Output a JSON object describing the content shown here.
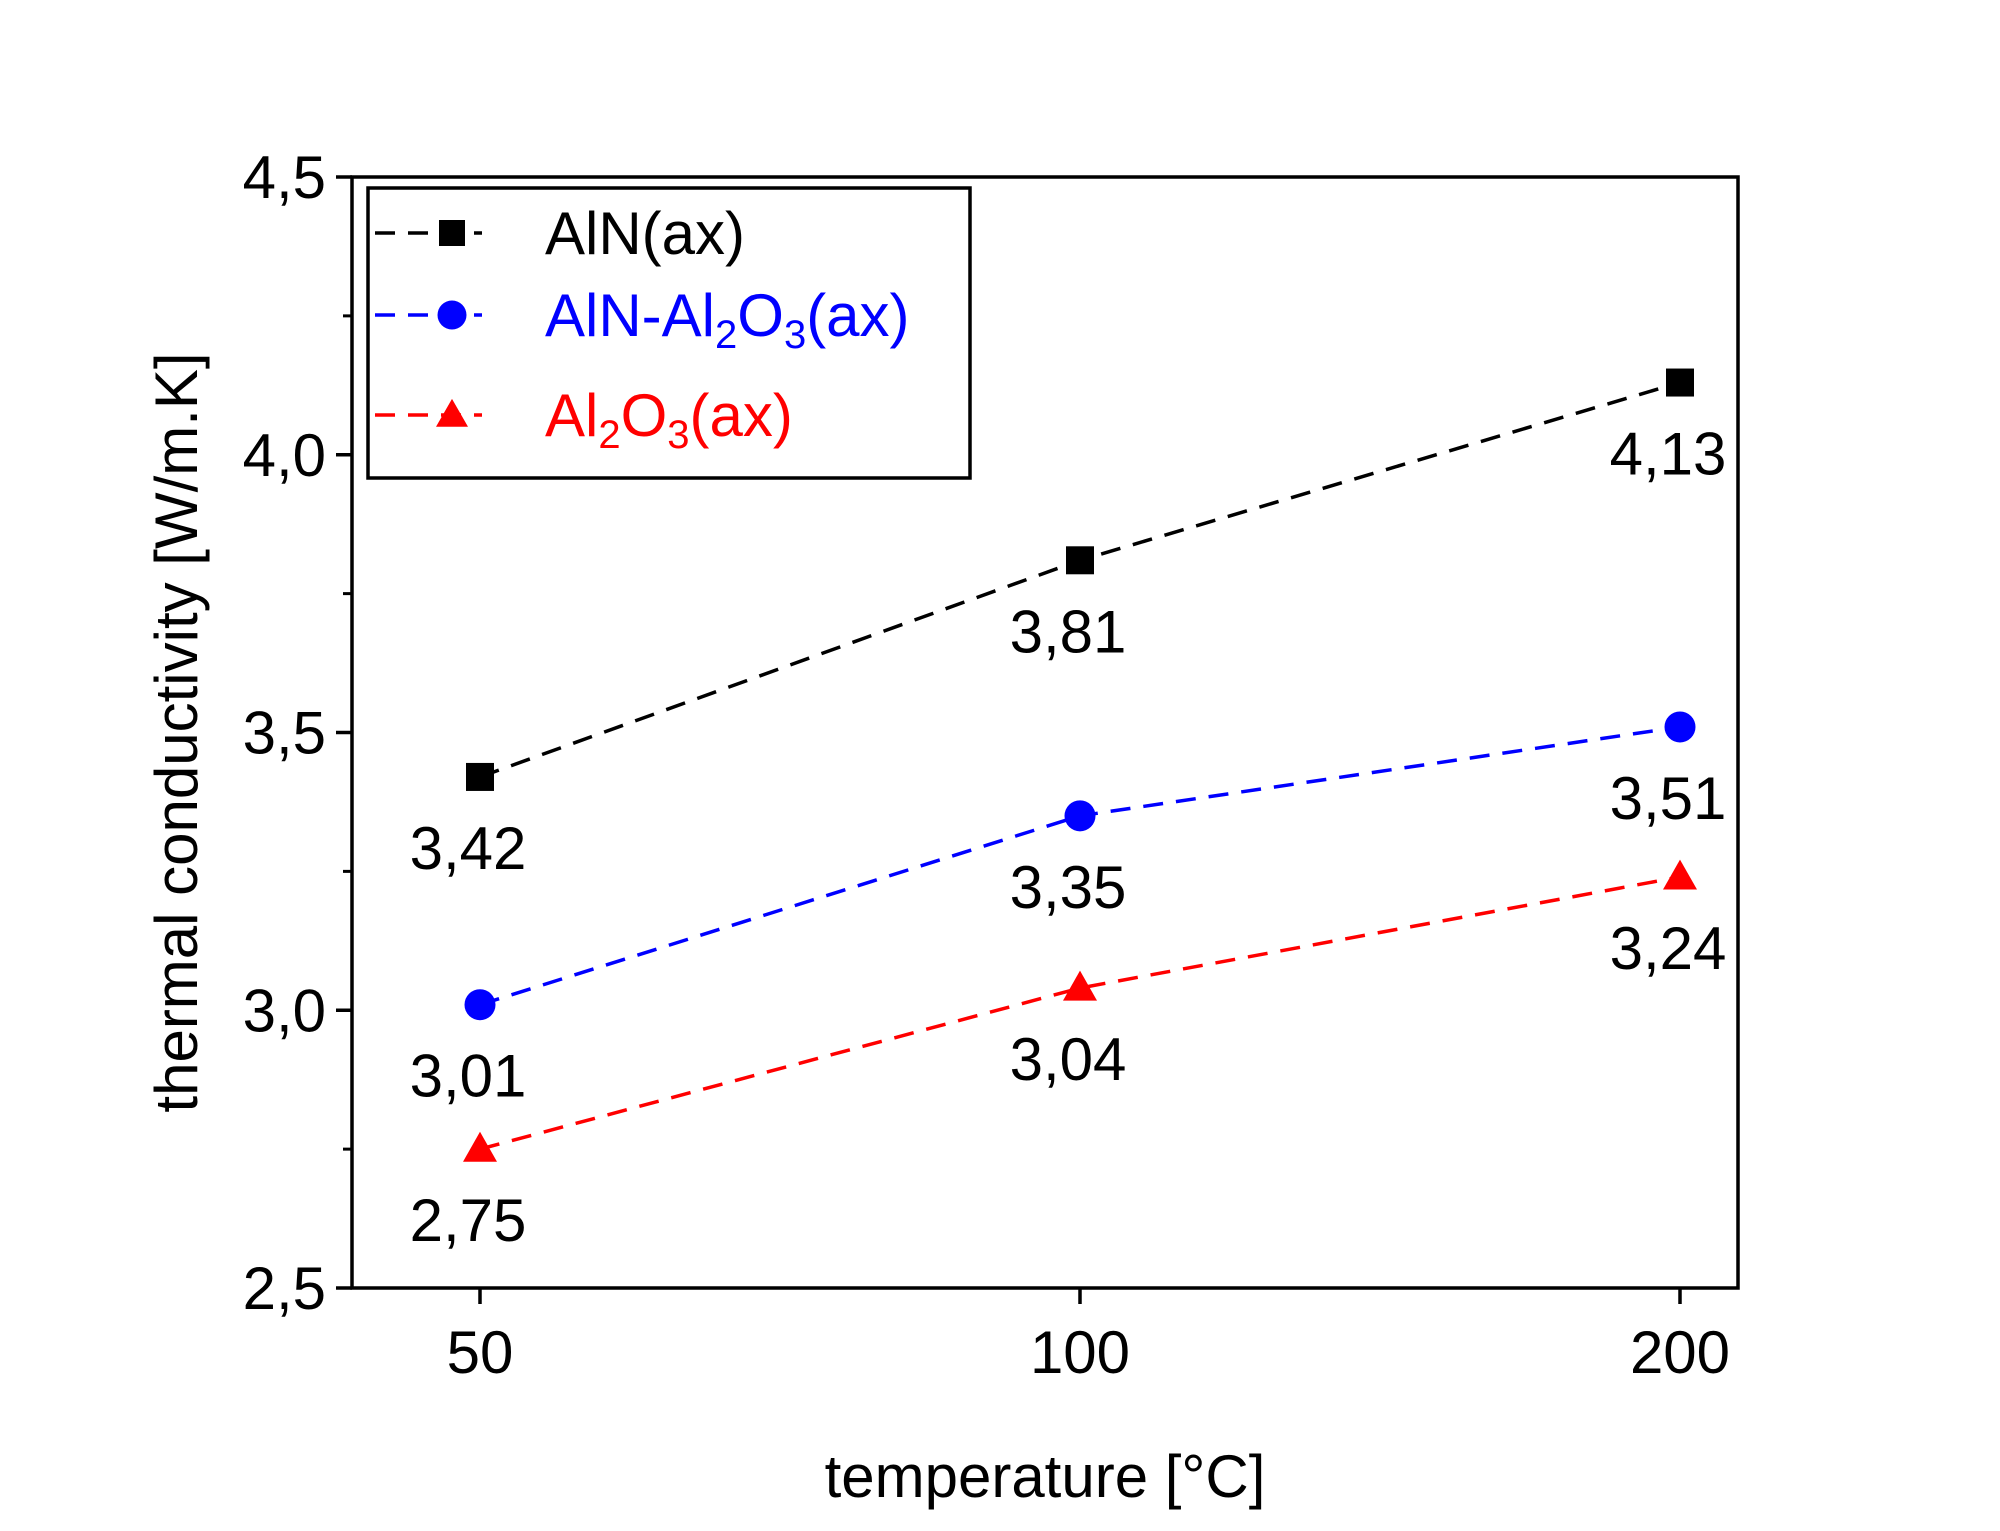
{
  "chart_data": {
    "type": "line",
    "categories": [
      "50",
      "100",
      "200"
    ],
    "xlabel": "temperature [°C]",
    "ylabel": "thermal conductivity [W/m.K]",
    "ylim": [
      2.5,
      4.5
    ],
    "yticks": [
      "2,5",
      "3,0",
      "3,5",
      "4,0",
      "4,5"
    ],
    "ytick_values": [
      2.5,
      3.0,
      3.5,
      4.0,
      4.5
    ],
    "legend_position": "top-left",
    "grid": false,
    "series": [
      {
        "name_parts": [
          {
            "t": "AlN(ax)"
          }
        ],
        "values": [
          3.42,
          3.81,
          4.13
        ],
        "labels": [
          "3,42",
          "3,81",
          "4,13"
        ],
        "color": "#000000",
        "marker": "square"
      },
      {
        "name_parts": [
          {
            "t": "AlN-Al"
          },
          {
            "t": "2",
            "sub": true
          },
          {
            "t": "O"
          },
          {
            "t": "3",
            "sub": true
          },
          {
            "t": "(ax)"
          }
        ],
        "values": [
          3.01,
          3.35,
          3.51
        ],
        "labels": [
          "3,01",
          "3,35",
          "3,51"
        ],
        "color": "#0000ff",
        "marker": "circle"
      },
      {
        "name_parts": [
          {
            "t": "Al"
          },
          {
            "t": "2",
            "sub": true
          },
          {
            "t": "O"
          },
          {
            "t": "3",
            "sub": true
          },
          {
            "t": "(ax)"
          }
        ],
        "values": [
          2.75,
          3.04,
          3.24
        ],
        "labels": [
          "2,75",
          "3,04",
          "3,24"
        ],
        "color": "#ff0000",
        "marker": "triangle"
      }
    ]
  }
}
